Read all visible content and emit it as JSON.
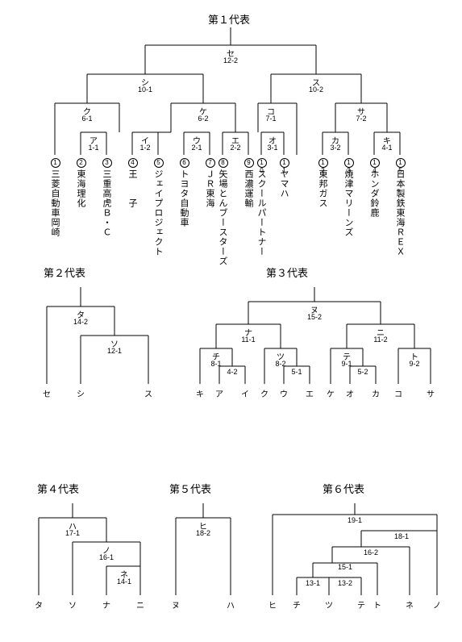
{
  "colors": {
    "line": "#000000",
    "bg": "#ffffff",
    "text": "#000000"
  },
  "stroke_width": 1,
  "titles": {
    "b1": "第１代表",
    "b2": "第２代表",
    "b3": "第３代表",
    "b4": "第４代表",
    "b5": "第５代表",
    "b6": "第６代表"
  },
  "b1": {
    "nodes": {
      "root": {
        "l": "セ",
        "s": "12-2"
      },
      "shi": {
        "l": "シ",
        "s": "10-1"
      },
      "su": {
        "l": "ス",
        "s": "10-2"
      },
      "ku": {
        "l": "ク",
        "s": "6-1"
      },
      "ke": {
        "l": "ケ",
        "s": "6-2"
      },
      "ko": {
        "l": "コ",
        "s": "7-1"
      },
      "sa": {
        "l": "サ",
        "s": "7-2"
      },
      "a": {
        "l": "ア",
        "s": "1-1"
      },
      "i": {
        "l": "イ",
        "s": "1-2"
      },
      "u": {
        "l": "ウ",
        "s": "2-1"
      },
      "e": {
        "l": "エ",
        "s": "2-2"
      },
      "o": {
        "l": "オ",
        "s": "3-1"
      },
      "ka": {
        "l": "カ",
        "s": "3-2"
      },
      "ki": {
        "l": "キ",
        "s": "4-1"
      }
    },
    "teams": [
      {
        "n": "1",
        "name": "三菱自動車岡崎"
      },
      {
        "n": "2",
        "name": "東海理化"
      },
      {
        "n": "3",
        "name": "三重高虎Ｂ・Ｃ"
      },
      {
        "n": "4",
        "name": "王　　子"
      },
      {
        "n": "5",
        "name": "ジェイプロジェクト"
      },
      {
        "n": "6",
        "name": "トヨタ自動車"
      },
      {
        "n": "7",
        "name": "ＪＲ東海"
      },
      {
        "n": "8",
        "name": "矢場とんブースターズ"
      },
      {
        "n": "9",
        "name": "西濃運輸"
      },
      {
        "n": "10",
        "name": "スクールパートナー"
      },
      {
        "n": "11",
        "name": "ヤマハ"
      },
      {
        "n": "12",
        "name": "東邦ガス"
      },
      {
        "n": "13",
        "name": "焼津マリーンズ"
      },
      {
        "n": "14",
        "name": "ホンダ鈴鹿"
      },
      {
        "n": "15",
        "name": "日本製鉄東海ＲＥＸ"
      }
    ]
  },
  "b2": {
    "nodes": {
      "ta": {
        "l": "タ",
        "s": "14-2"
      },
      "so": {
        "l": "ソ",
        "s": "12-1"
      }
    },
    "leaves": [
      "セ",
      "シ",
      "ス"
    ]
  },
  "b3": {
    "nodes": {
      "nu": {
        "l": "ヌ",
        "s": "15-2"
      },
      "na": {
        "l": "ナ",
        "s": "11-1"
      },
      "ni": {
        "l": "ニ",
        "s": "11-2"
      },
      "chi": {
        "l": "チ",
        "s": "8-1"
      },
      "tsu": {
        "l": "ツ",
        "s": "8-2"
      },
      "te": {
        "l": "テ",
        "s": "9-1"
      },
      "to": {
        "l": "ト",
        "s": "9-2"
      },
      "m1": {
        "s": "4-2"
      },
      "m2": {
        "s": "5-1"
      },
      "m3": {
        "s": "5-2"
      }
    },
    "leaves": [
      "キ",
      "ア",
      "イ",
      "ク",
      "ウ",
      "エ",
      "ケ",
      "オ",
      "カ",
      "コ",
      "サ"
    ]
  },
  "b4": {
    "nodes": {
      "ha": {
        "l": "ハ",
        "s": "17-1"
      },
      "no": {
        "l": "ノ",
        "s": "16-1"
      },
      "ne": {
        "l": "ネ",
        "s": "14-1"
      }
    },
    "leaves": [
      "タ",
      "ソ",
      "ナ",
      "ニ"
    ]
  },
  "b5": {
    "nodes": {
      "hi": {
        "l": "ヒ",
        "s": "18-2"
      }
    },
    "leaves": [
      "ヌ",
      "ハ"
    ]
  },
  "b6": {
    "nodes": {
      "r": {
        "s": "19-1"
      },
      "n18": {
        "s": "18-1"
      },
      "n16": {
        "s": "16-2"
      },
      "n15": {
        "s": "15-1"
      },
      "n131": {
        "s": "13-1"
      },
      "n132": {
        "s": "13-2"
      }
    },
    "leaves": [
      "ヒ",
      "チ",
      "ツ",
      "テ",
      "ト",
      "ネ",
      "ノ"
    ]
  }
}
